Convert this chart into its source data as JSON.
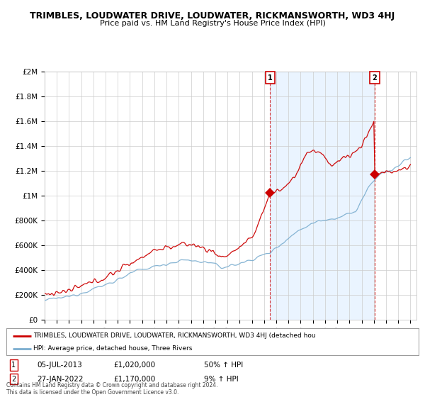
{
  "title": "TRIMBLES, LOUDWATER DRIVE, LOUDWATER, RICKMANSWORTH, WD3 4HJ",
  "subtitle": "Price paid vs. HM Land Registry's House Price Index (HPI)",
  "ylim": [
    0,
    2000000
  ],
  "yticks": [
    0,
    200000,
    400000,
    600000,
    800000,
    1000000,
    1200000,
    1400000,
    1600000,
    1800000,
    2000000
  ],
  "ytick_labels": [
    "£0",
    "£200K",
    "£400K",
    "£600K",
    "£800K",
    "£1M",
    "£1.2M",
    "£1.4M",
    "£1.6M",
    "£1.8M",
    "£2M"
  ],
  "year_start": 1995,
  "year_end": 2025,
  "red_color": "#cc0000",
  "blue_color": "#7aadcf",
  "shade_color": "#ddeeff",
  "marker1_year": 2013.5,
  "marker1_value": 1020000,
  "marker2_year": 2022.07,
  "marker2_value": 1170000,
  "legend_red_text": "TRIMBLES, LOUDWATER DRIVE, LOUDWATER, RICKMANSWORTH, WD3 4HJ (detached hou",
  "legend_blue_text": "HPI: Average price, detached house, Three Rivers",
  "annotation1_date": "05-JUL-2013",
  "annotation1_price": "£1,020,000",
  "annotation1_hpi": "50% ↑ HPI",
  "annotation2_date": "27-JAN-2022",
  "annotation2_price": "£1,170,000",
  "annotation2_hpi": "9% ↑ HPI",
  "footer": "Contains HM Land Registry data © Crown copyright and database right 2024.\nThis data is licensed under the Open Government Licence v3.0.",
  "bg_color": "#ffffff",
  "grid_color": "#cccccc"
}
